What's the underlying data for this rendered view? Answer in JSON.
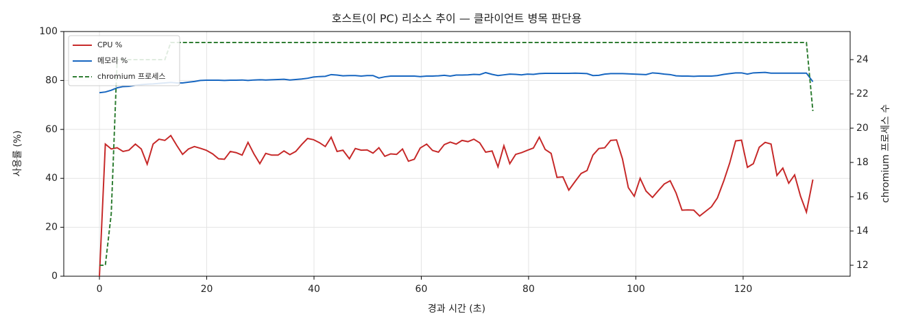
{
  "chart_data": {
    "type": "line",
    "title": "호스트(이 PC) 리소스 추이 — 클라이언트 병목 판단용",
    "xlabel": "경과 시간 (초)",
    "ylabel": "사용률 (%)",
    "y2label": "chromium 프로세스 수",
    "xlim": [
      -6.65,
      139.95
    ],
    "xticks": [
      0,
      20,
      40,
      60,
      80,
      100,
      120
    ],
    "ylim": [
      0,
      100
    ],
    "yticks": [
      0,
      20,
      40,
      60,
      80,
      100
    ],
    "y2lim": [
      11.36,
      25.64
    ],
    "y2ticks": [
      12,
      14,
      16,
      18,
      20,
      22,
      24
    ],
    "grid": true,
    "legend": "upper left",
    "x": [
      0,
      1.1,
      2.2,
      3.3,
      4.4,
      5.5,
      6.7,
      7.8,
      8.9,
      10,
      11.1,
      12.2,
      13.3,
      14.4,
      15.5,
      16.6,
      17.7,
      18.8,
      19.9,
      21.1,
      22.2,
      23.3,
      24.4,
      25.5,
      26.6,
      27.7,
      28.8,
      29.9,
      31,
      32.1,
      33.3,
      34.4,
      35.5,
      36.6,
      37.7,
      38.8,
      39.9,
      41,
      42.1,
      43.2,
      44.3,
      45.4,
      46.6,
      47.7,
      48.8,
      49.9,
      51,
      52.1,
      53.2,
      54.3,
      55.4,
      56.5,
      57.6,
      58.7,
      59.8,
      61,
      62.1,
      63.2,
      64.3,
      65.4,
      66.5,
      67.6,
      68.7,
      69.8,
      70.9,
      72,
      73.2,
      74.3,
      75.4,
      76.5,
      77.6,
      78.7,
      79.8,
      80.9,
      82,
      83.1,
      84.2,
      85.3,
      86.4,
      87.5,
      88.7,
      89.8,
      90.9,
      92,
      93.1,
      94.2,
      95.3,
      96.4,
      97.5,
      98.6,
      99.7,
      100.8,
      101.9,
      103.1,
      104.2,
      105.3,
      106.4,
      107.5,
      108.6,
      109.7,
      110.8,
      111.9,
      113,
      114.1,
      115.2,
      116.4,
      117.5,
      118.6,
      119.7,
      120.8,
      121.9,
      123,
      124.1,
      125.2,
      126.3,
      127.4,
      128.5,
      129.6,
      130.7,
      131.8,
      133
    ],
    "series": [
      {
        "name": "CPU %",
        "color": "#c62828",
        "dash": false,
        "values": [
          0,
          54,
          52,
          52.5,
          51,
          51.5,
          54,
          52,
          45.8,
          54,
          56,
          55.5,
          57.5,
          53.5,
          49.8,
          52,
          53,
          52.3,
          51.5,
          50,
          48,
          47.8,
          51,
          50.5,
          49.5,
          54.7,
          50,
          46,
          50.2,
          49.5,
          49.5,
          51.2,
          49.7,
          51,
          53.8,
          56.3,
          55.8,
          54.6,
          53,
          56.8,
          51,
          51.5,
          48,
          52.2,
          51.5,
          51.6,
          50.3,
          52.5,
          49,
          50,
          49.8,
          52,
          47,
          47.8,
          52.4,
          54,
          51.4,
          50.7,
          53.8,
          54.8,
          54,
          55.5,
          55,
          56,
          54.5,
          50.7,
          51.2,
          44.7,
          53.3,
          46,
          49.8,
          50.5,
          51.5,
          52.4,
          56.8,
          51.8,
          50.2,
          40.4,
          40.6,
          35.2,
          38.8,
          42,
          43.2,
          49.5,
          52.2,
          52.5,
          55.5,
          55.7,
          48,
          36.2,
          32.7,
          40,
          34.8,
          32.2,
          35,
          37.7,
          39,
          34,
          27,
          27.1,
          27,
          24.6,
          26.5,
          28.4,
          32,
          39,
          46.3,
          55.3,
          55.6,
          44.5,
          46,
          52.7,
          54.7,
          54,
          41.2,
          44.2,
          38,
          41.4,
          32.7,
          26.2,
          39.5
        ]
      },
      {
        "name": "메모리 %",
        "color": "#1565c0",
        "dash": false,
        "values": [
          75,
          75.3,
          76,
          77,
          77.5,
          77.6,
          78,
          78.3,
          78.5,
          78.6,
          78.8,
          79,
          79.2,
          79,
          79,
          79.3,
          79.6,
          80,
          80.1,
          80.1,
          80.1,
          80,
          80.1,
          80.1,
          80.2,
          80,
          80.2,
          80.3,
          80.2,
          80.3,
          80.4,
          80.5,
          80.2,
          80.4,
          80.6,
          80.9,
          81.4,
          81.6,
          81.7,
          82.4,
          82.2,
          81.9,
          82,
          82,
          81.8,
          82,
          82,
          81,
          81.5,
          81.8,
          81.8,
          81.8,
          81.8,
          81.8,
          81.6,
          81.8,
          81.8,
          81.9,
          82.1,
          81.8,
          82.2,
          82.2,
          82.3,
          82.5,
          82.4,
          83.2,
          82.5,
          82,
          82.3,
          82.6,
          82.5,
          82.3,
          82.6,
          82.5,
          82.8,
          82.9,
          82.9,
          82.9,
          82.9,
          82.9,
          83,
          82.9,
          82.8,
          82,
          82.1,
          82.6,
          82.8,
          82.8,
          82.8,
          82.7,
          82.6,
          82.5,
          82.4,
          83.1,
          82.9,
          82.6,
          82.4,
          81.9,
          81.8,
          81.8,
          81.7,
          81.8,
          81.8,
          81.8,
          82,
          82.5,
          82.8,
          83.1,
          83.1,
          82.6,
          83.1,
          83.2,
          83.3,
          83,
          83,
          83,
          83,
          83,
          83,
          83,
          79.5
        ]
      },
      {
        "name": "chromium 프로세스",
        "color": "#2e7d32",
        "dash": true,
        "axis": "y2",
        "values": [
          12,
          12,
          15,
          24,
          24,
          24,
          24,
          24,
          24,
          24,
          24,
          24,
          25,
          25,
          25,
          25,
          25,
          25,
          25,
          25,
          25,
          25,
          25,
          25,
          25,
          25,
          25,
          25,
          25,
          25,
          25,
          25,
          25,
          25,
          25,
          25,
          25,
          25,
          25,
          25,
          25,
          25,
          25,
          25,
          25,
          25,
          25,
          25,
          25,
          25,
          25,
          25,
          25,
          25,
          25,
          25,
          25,
          25,
          25,
          25,
          25,
          25,
          25,
          25,
          25,
          25,
          25,
          25,
          25,
          25,
          25,
          25,
          25,
          25,
          25,
          25,
          25,
          25,
          25,
          25,
          25,
          25,
          25,
          25,
          25,
          25,
          25,
          25,
          25,
          25,
          25,
          25,
          25,
          25,
          25,
          25,
          25,
          25,
          25,
          25,
          25,
          25,
          25,
          25,
          25,
          25,
          25,
          25,
          25,
          25,
          25,
          25,
          25,
          25,
          25,
          25,
          25,
          25,
          25,
          25,
          21
        ]
      }
    ]
  }
}
